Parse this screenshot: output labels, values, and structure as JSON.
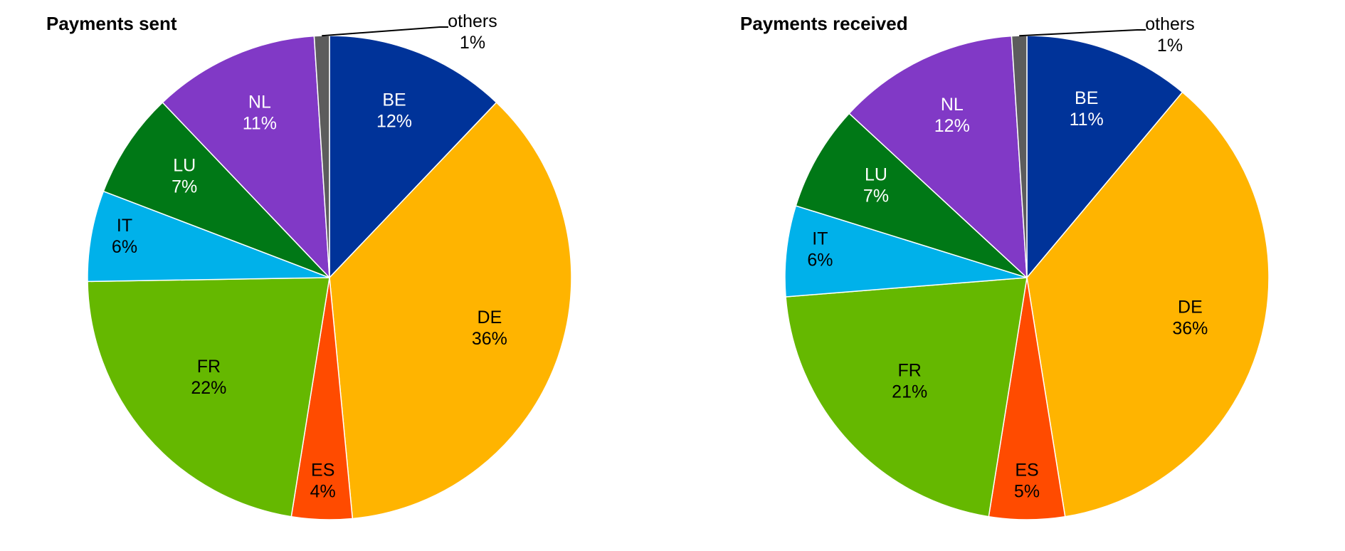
{
  "chart_data": [
    {
      "type": "pie",
      "title": "Payments sent",
      "slices": [
        {
          "label": "BE",
          "value": 12,
          "display": "12%",
          "color": "#003399"
        },
        {
          "label": "DE",
          "value": 36,
          "display": "36%",
          "color": "#FFB400"
        },
        {
          "label": "ES",
          "value": 4,
          "display": "4%",
          "color": "#FF4B00"
        },
        {
          "label": "FR",
          "value": 22,
          "display": "22%",
          "color": "#65B800"
        },
        {
          "label": "IT",
          "value": 6,
          "display": "6%",
          "color": "#00B1EA"
        },
        {
          "label": "LU",
          "value": 7,
          "display": "7%",
          "color": "#007816"
        },
        {
          "label": "NL",
          "value": 11,
          "display": "11%",
          "color": "#8139C6"
        },
        {
          "label": "others",
          "value": 1,
          "display": "1%",
          "color": "#5C5C5C"
        }
      ]
    },
    {
      "type": "pie",
      "title": "Payments received",
      "slices": [
        {
          "label": "BE",
          "value": 11,
          "display": "11%",
          "color": "#003399"
        },
        {
          "label": "DE",
          "value": 36,
          "display": "36%",
          "color": "#FFB400"
        },
        {
          "label": "ES",
          "value": 5,
          "display": "5%",
          "color": "#FF4B00"
        },
        {
          "label": "FR",
          "value": 21,
          "display": "21%",
          "color": "#65B800"
        },
        {
          "label": "IT",
          "value": 6,
          "display": "6%",
          "color": "#00B1EA"
        },
        {
          "label": "LU",
          "value": 7,
          "display": "7%",
          "color": "#007816"
        },
        {
          "label": "NL",
          "value": 12,
          "display": "12%",
          "color": "#8139C6"
        },
        {
          "label": "others",
          "value": 1,
          "display": "1%",
          "color": "#5C5C5C"
        }
      ]
    }
  ]
}
